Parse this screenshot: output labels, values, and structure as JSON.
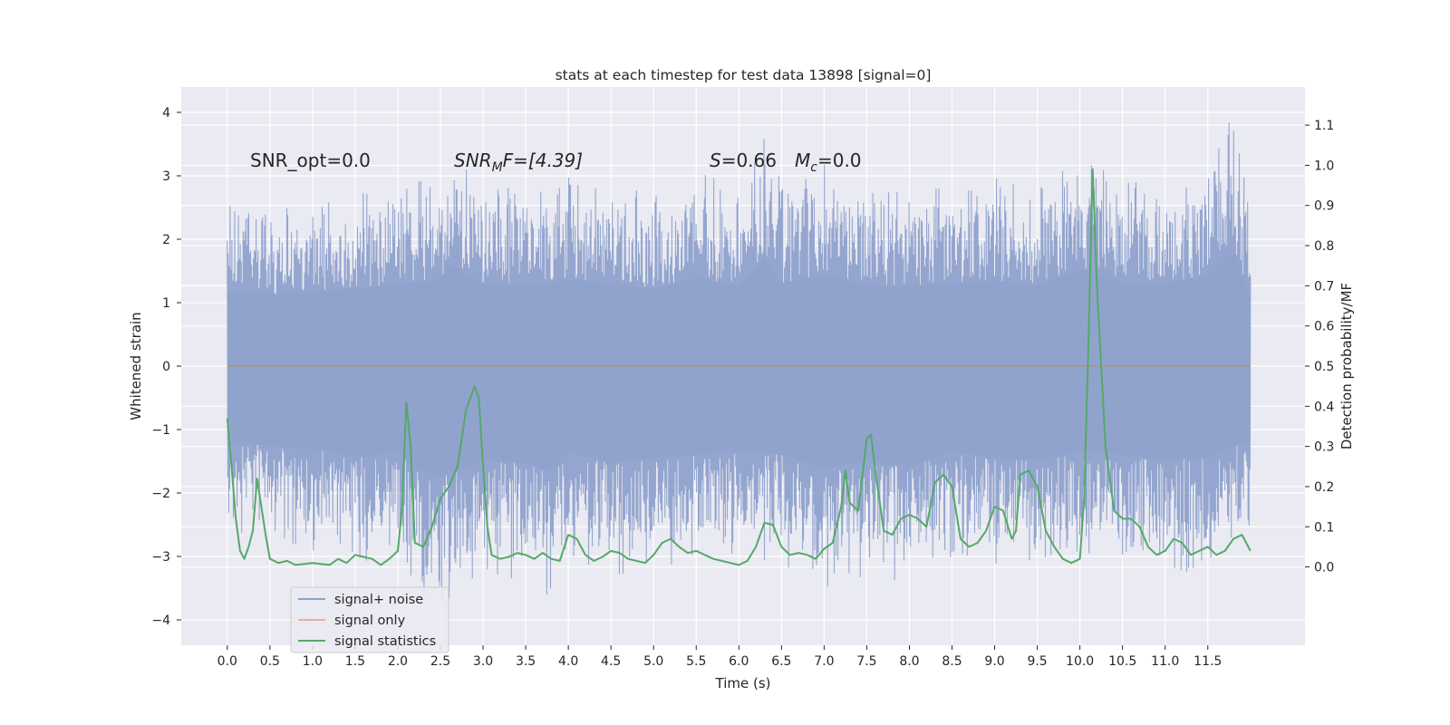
{
  "chart_data": {
    "type": "line",
    "title": "stats at each timestep for test data 13898 [signal=0]",
    "xlabel": "Time (s)",
    "ylabel_left": "Whitened strain",
    "ylabel_right": "Detection probability/MF",
    "xlim": [
      -0.54,
      12.64
    ],
    "ylim_left": [
      -4.4,
      4.4
    ],
    "ylim_right": [
      -0.195,
      1.195
    ],
    "x_ticks": [
      "0.0",
      "0.5",
      "1.0",
      "1.5",
      "2.0",
      "2.5",
      "3.0",
      "3.5",
      "4.0",
      "4.5",
      "5.0",
      "5.5",
      "6.0",
      "6.5",
      "7.0",
      "7.5",
      "8.0",
      "8.5",
      "9.0",
      "9.5",
      "10.0",
      "10.5",
      "11.0",
      "11.5"
    ],
    "y_left_ticks": [
      "4",
      "3",
      "2",
      "1",
      "0",
      "−1",
      "−2",
      "−3",
      "−4"
    ],
    "y_right_ticks": [
      "1.1",
      "1.0",
      "0.9",
      "0.8",
      "0.7",
      "0.6",
      "0.5",
      "0.4",
      "0.3",
      "0.2",
      "0.1",
      "0.0"
    ],
    "grid": true,
    "legend": "lower-left",
    "annotations": {
      "snr_opt": "SNR_opt=0.0",
      "snr_mf_prefix": "SNR",
      "snr_mf_sub": "M",
      "snr_mf_suffix": "F=[4.39]",
      "s_prefix": "S",
      "s_value": "=0.66",
      "mc_prefix": "M",
      "mc_sub": "c",
      "mc_value": "=0.0"
    },
    "series": [
      {
        "name": "signal+ noise",
        "color": "#8fa2cc",
        "x_range": [
          0.0,
          12.0
        ],
        "envelope_upper": {
          "x": [
            0.0,
            0.5,
            1.0,
            1.5,
            2.0,
            2.5,
            2.6,
            3.0,
            3.5,
            4.0,
            4.5,
            5.0,
            5.5,
            6.0,
            6.3,
            6.5,
            7.0,
            7.5,
            8.0,
            8.5,
            9.0,
            9.5,
            10.0,
            10.5,
            11.0,
            11.5,
            11.8,
            12.0
          ],
          "y": [
            2.6,
            2.5,
            2.6,
            2.7,
            2.9,
            3.0,
            3.6,
            2.9,
            2.8,
            3.0,
            2.9,
            2.7,
            3.1,
            2.8,
            3.8,
            2.9,
            3.2,
            2.8,
            2.8,
            2.9,
            3.0,
            2.8,
            3.4,
            2.9,
            2.9,
            3.1,
            4.1,
            2.4
          ]
        },
        "envelope_lower": {
          "x": [
            0.0,
            0.5,
            1.0,
            1.5,
            2.0,
            2.2,
            2.5,
            3.0,
            3.5,
            3.8,
            4.0,
            4.5,
            5.0,
            5.5,
            6.0,
            6.5,
            7.0,
            7.5,
            8.0,
            8.5,
            9.0,
            9.5,
            10.0,
            10.5,
            11.0,
            11.5,
            12.0
          ],
          "y": [
            -2.6,
            -2.8,
            -2.9,
            -3.2,
            -3.0,
            -3.6,
            -3.9,
            -3.3,
            -3.4,
            -3.7,
            -3.0,
            -3.4,
            -3.2,
            -3.1,
            -3.0,
            -3.1,
            -3.6,
            -3.3,
            -3.5,
            -3.0,
            -3.2,
            -3.3,
            -3.0,
            -3.1,
            -3.3,
            -3.2,
            -2.6
          ]
        }
      },
      {
        "name": "signal only",
        "color": "#dd8452",
        "x": [
          0.0,
          12.0
        ],
        "y": [
          0.0,
          0.0
        ]
      },
      {
        "name": "signal statistics",
        "color": "#55a868",
        "axis": "right",
        "x": [
          0.0,
          0.05,
          0.1,
          0.15,
          0.2,
          0.25,
          0.3,
          0.35,
          0.4,
          0.45,
          0.5,
          0.6,
          0.7,
          0.8,
          1.0,
          1.2,
          1.3,
          1.4,
          1.5,
          1.6,
          1.7,
          1.8,
          1.9,
          2.0,
          2.05,
          2.1,
          2.15,
          2.2,
          2.3,
          2.4,
          2.5,
          2.6,
          2.7,
          2.8,
          2.9,
          2.95,
          3.0,
          3.05,
          3.1,
          3.2,
          3.3,
          3.4,
          3.5,
          3.6,
          3.7,
          3.8,
          3.9,
          4.0,
          4.1,
          4.2,
          4.3,
          4.4,
          4.5,
          4.6,
          4.7,
          4.8,
          4.9,
          5.0,
          5.1,
          5.2,
          5.3,
          5.4,
          5.5,
          5.6,
          5.7,
          5.8,
          5.9,
          6.0,
          6.1,
          6.2,
          6.3,
          6.4,
          6.5,
          6.6,
          6.7,
          6.8,
          6.9,
          7.0,
          7.1,
          7.2,
          7.25,
          7.3,
          7.4,
          7.5,
          7.55,
          7.6,
          7.7,
          7.8,
          7.9,
          8.0,
          8.1,
          8.2,
          8.3,
          8.4,
          8.5,
          8.6,
          8.7,
          8.8,
          8.9,
          9.0,
          9.1,
          9.2,
          9.25,
          9.3,
          9.4,
          9.5,
          9.6,
          9.7,
          9.8,
          9.9,
          10.0,
          10.05,
          10.1,
          10.15,
          10.2,
          10.3,
          10.4,
          10.5,
          10.6,
          10.7,
          10.8,
          10.9,
          11.0,
          11.1,
          11.2,
          11.3,
          11.4,
          11.5,
          11.6,
          11.7,
          11.8,
          11.9,
          12.0
        ],
        "y": [
          0.37,
          0.25,
          0.12,
          0.04,
          0.02,
          0.05,
          0.09,
          0.22,
          0.15,
          0.08,
          0.02,
          0.01,
          0.015,
          0.005,
          0.01,
          0.005,
          0.02,
          0.01,
          0.03,
          0.025,
          0.02,
          0.005,
          0.02,
          0.04,
          0.15,
          0.41,
          0.3,
          0.06,
          0.05,
          0.1,
          0.17,
          0.2,
          0.25,
          0.39,
          0.45,
          0.42,
          0.25,
          0.1,
          0.03,
          0.02,
          0.025,
          0.035,
          0.03,
          0.02,
          0.035,
          0.02,
          0.015,
          0.08,
          0.07,
          0.03,
          0.015,
          0.025,
          0.04,
          0.035,
          0.02,
          0.015,
          0.01,
          0.03,
          0.06,
          0.07,
          0.05,
          0.035,
          0.04,
          0.03,
          0.02,
          0.015,
          0.01,
          0.005,
          0.015,
          0.05,
          0.11,
          0.105,
          0.05,
          0.03,
          0.035,
          0.03,
          0.02,
          0.045,
          0.06,
          0.15,
          0.24,
          0.16,
          0.14,
          0.32,
          0.33,
          0.24,
          0.09,
          0.08,
          0.12,
          0.13,
          0.12,
          0.1,
          0.21,
          0.23,
          0.2,
          0.07,
          0.05,
          0.06,
          0.09,
          0.15,
          0.14,
          0.07,
          0.09,
          0.23,
          0.24,
          0.2,
          0.09,
          0.05,
          0.02,
          0.01,
          0.02,
          0.17,
          0.55,
          0.99,
          0.7,
          0.3,
          0.14,
          0.12,
          0.12,
          0.1,
          0.05,
          0.03,
          0.04,
          0.07,
          0.06,
          0.03,
          0.04,
          0.05,
          0.03,
          0.04,
          0.07,
          0.08,
          0.04
        ]
      }
    ]
  }
}
